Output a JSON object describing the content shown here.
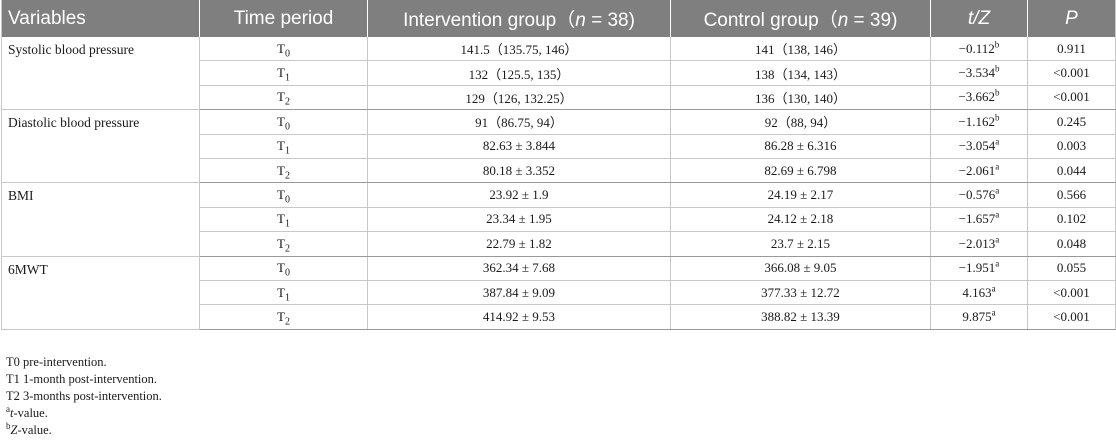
{
  "headers": {
    "variables": "Variables",
    "time_period": "Time period",
    "intervention_pre": "Intervention group（",
    "intervention_n": "n",
    "intervention_post": " = 38)",
    "control_pre": "Control group（",
    "control_n": "n",
    "control_post": " = 39)",
    "t": "t",
    "slash_z": "/Z",
    "p": "P"
  },
  "groups": [
    {
      "variable": "Systolic blood pressure",
      "rows": [
        {
          "tp": "T",
          "sub": "0",
          "intervention": "141.5（135.75, 146）",
          "control": "141（138, 146）",
          "tz": "−0.112",
          "sup": "b",
          "p": "0.911"
        },
        {
          "tp": "T",
          "sub": "1",
          "intervention": "132（125.5, 135）",
          "control": "138（134, 143）",
          "tz": "−3.534",
          "sup": "b",
          "p": "<0.001"
        },
        {
          "tp": "T",
          "sub": "2",
          "intervention": "129（126, 132.25）",
          "control": "136（130, 140）",
          "tz": "−3.662",
          "sup": "b",
          "p": "<0.001"
        }
      ]
    },
    {
      "variable": "Diastolic blood pressure",
      "rows": [
        {
          "tp": "T",
          "sub": "0",
          "intervention": "91（86.75, 94）",
          "control": "92（88, 94）",
          "tz": "−1.162",
          "sup": "b",
          "p": "0.245"
        },
        {
          "tp": "T",
          "sub": "1",
          "intervention": "82.63 ± 3.844",
          "control": "86.28 ± 6.316",
          "tz": "−3.054",
          "sup": "a",
          "p": "0.003"
        },
        {
          "tp": "T",
          "sub": "2",
          "intervention": "80.18 ± 3.352",
          "control": "82.69 ± 6.798",
          "tz": "−2.061",
          "sup": "a",
          "p": "0.044"
        }
      ]
    },
    {
      "variable": "BMI",
      "rows": [
        {
          "tp": "T",
          "sub": "0",
          "intervention": "23.92 ± 1.9",
          "control": "24.19 ± 2.17",
          "tz": "−0.576",
          "sup": "a",
          "p": "0.566"
        },
        {
          "tp": "T",
          "sub": "1",
          "intervention": "23.34 ± 1.95",
          "control": "24.12 ± 2.18",
          "tz": "−1.657",
          "sup": "a",
          "p": "0.102"
        },
        {
          "tp": "T",
          "sub": "2",
          "intervention": "22.79 ± 1.82",
          "control": "23.7 ± 2.15",
          "tz": "−2.013",
          "sup": "a",
          "p": "0.048"
        }
      ]
    },
    {
      "variable": "6MWT",
      "rows": [
        {
          "tp": "T",
          "sub": "0",
          "intervention": "362.34 ± 7.68",
          "control": "366.08 ± 9.05",
          "tz": "−1.951",
          "sup": "a",
          "p": "0.055"
        },
        {
          "tp": "T",
          "sub": "1",
          "intervention": "387.84 ± 9.09",
          "control": "377.33 ± 12.72",
          "tz": "4.163",
          "sup": "a",
          "p": "<0.001"
        },
        {
          "tp": "T",
          "sub": "2",
          "intervention": "414.92 ± 9.53",
          "control": "388.82 ± 13.39",
          "tz": "9.875",
          "sup": "a",
          "p": "<0.001"
        }
      ]
    }
  ],
  "footnotes": {
    "t0": "T0 pre-intervention.",
    "t1": "T1 1-month post-intervention.",
    "t2": "T2 3-months post-intervention.",
    "a_mark": "a",
    "a_italic": "t",
    "a_text": "-value.",
    "b_mark": "b",
    "b_italic": "Z",
    "b_text": "-value."
  }
}
